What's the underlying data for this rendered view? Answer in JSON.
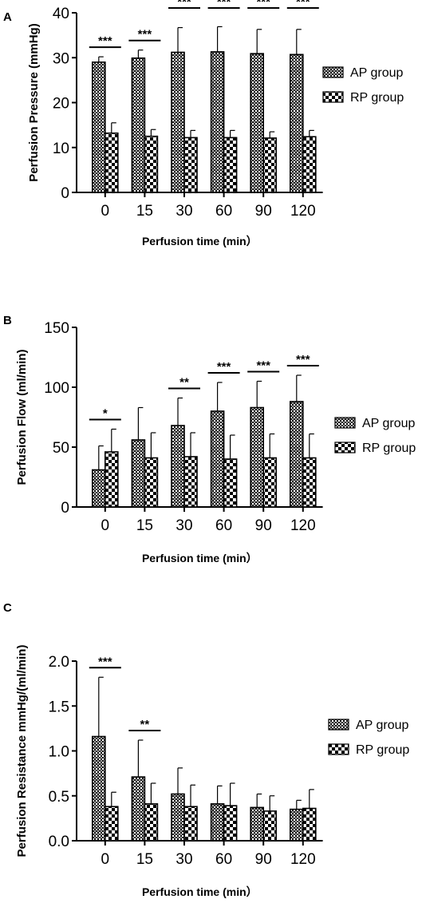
{
  "chart_data": [
    {
      "type": "bar",
      "panel_label": "A",
      "ylabel": "Perfusion Pressure (mmHg)",
      "xlabel": "Perfusion time (min）",
      "categories": [
        "0",
        "15",
        "30",
        "60",
        "90",
        "120"
      ],
      "ylim": [
        0,
        40
      ],
      "yticks": [
        "0",
        "10",
        "20",
        "30",
        "40"
      ],
      "series": [
        {
          "name": "AP group",
          "values": [
            29.0,
            29.9,
            31.2,
            31.3,
            30.9,
            30.7
          ],
          "errors": [
            1.2,
            1.8,
            5.5,
            5.6,
            5.4,
            5.6
          ]
        },
        {
          "name": "RP group",
          "values": [
            13.2,
            12.5,
            12.2,
            12.2,
            12.1,
            12.4
          ],
          "errors": [
            2.3,
            1.5,
            1.6,
            1.6,
            1.4,
            1.4
          ]
        }
      ],
      "significance": [
        "***",
        "***",
        "***",
        "***",
        "***",
        "***"
      ],
      "legend_position": "right"
    },
    {
      "type": "bar",
      "panel_label": "B",
      "ylabel": "Perfusion Flow (ml/min)",
      "xlabel": "Perfusion time (min）",
      "categories": [
        "0",
        "15",
        "30",
        "60",
        "90",
        "120"
      ],
      "ylim": [
        0,
        150
      ],
      "yticks": [
        "0",
        "50",
        "100",
        "150"
      ],
      "series": [
        {
          "name": "AP group",
          "values": [
            31,
            56,
            68,
            80,
            83,
            88
          ],
          "errors": [
            20,
            27,
            23,
            24,
            22,
            22
          ]
        },
        {
          "name": "RP group",
          "values": [
            46,
            41,
            42,
            40,
            41,
            41
          ],
          "errors": [
            19,
            21,
            20,
            20,
            20,
            20
          ]
        }
      ],
      "significance": [
        "*",
        "",
        "**",
        "***",
        "***",
        "***"
      ],
      "legend_position": "right"
    },
    {
      "type": "bar",
      "panel_label": "C",
      "ylabel": "Perfusion Resistance mmHg/(ml/min)",
      "xlabel": "Perfusion time (min）",
      "categories": [
        "0",
        "15",
        "30",
        "60",
        "90",
        "120"
      ],
      "ylim": [
        0,
        2.0
      ],
      "yticks": [
        "0.0",
        "0.5",
        "1.0",
        "1.5",
        "2.0"
      ],
      "series": [
        {
          "name": "AP group",
          "values": [
            1.16,
            0.71,
            0.52,
            0.41,
            0.37,
            0.35
          ],
          "errors": [
            0.66,
            0.41,
            0.29,
            0.2,
            0.15,
            0.1
          ]
        },
        {
          "name": "RP group",
          "values": [
            0.38,
            0.41,
            0.38,
            0.39,
            0.33,
            0.36
          ],
          "errors": [
            0.16,
            0.23,
            0.24,
            0.25,
            0.17,
            0.21
          ]
        }
      ],
      "significance": [
        "***",
        "**",
        "",
        "",
        "",
        ""
      ],
      "legend_position": "right"
    }
  ]
}
